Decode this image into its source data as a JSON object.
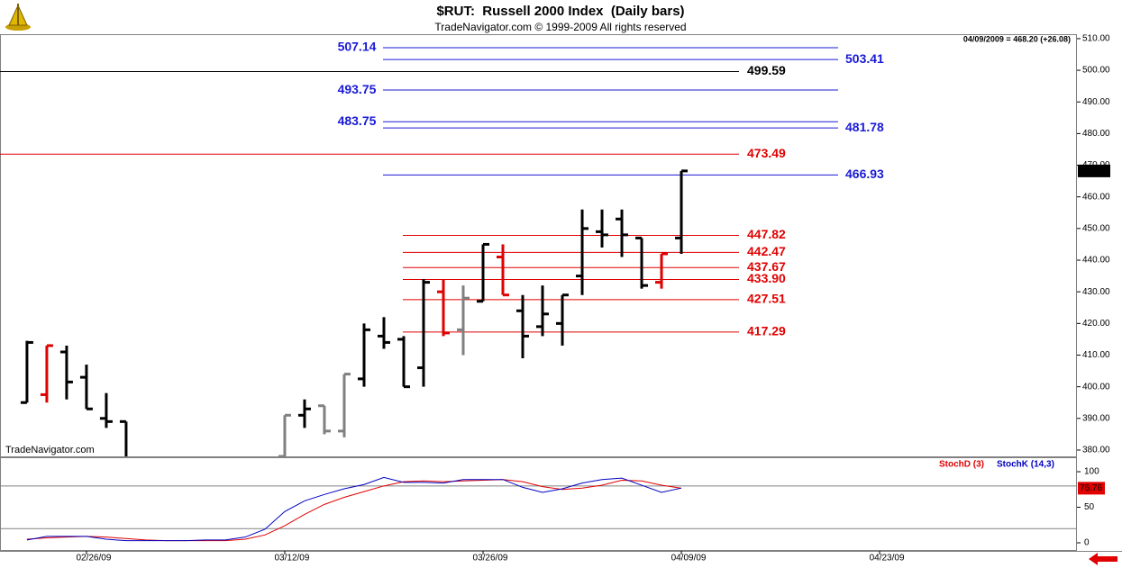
{
  "chart_data": [
    {
      "type": "ohlc",
      "title": "$RUT:  Russell 2000 Index  (Daily bars)",
      "subtitle": "TradeNavigator.com © 1999-2009 All rights reserved",
      "watermark": "TradeNavigator.com",
      "info": "04/09/2009 = 468.20 (+26.08)",
      "last_label": "468.20",
      "x": [
        0,
        1,
        2,
        3,
        4,
        5,
        6,
        7,
        8,
        9,
        10,
        11,
        12,
        13,
        14,
        15,
        16,
        17,
        18,
        19,
        20,
        21,
        22,
        23,
        24,
        25,
        26,
        27,
        28,
        29,
        30,
        31,
        32,
        33
      ],
      "open": [
        395,
        397.5,
        411,
        403,
        390,
        389,
        null,
        null,
        null,
        null,
        null,
        null,
        null,
        378,
        391,
        394,
        386,
        402.5,
        416,
        415,
        406,
        430,
        418,
        427,
        441,
        424,
        419,
        420,
        435,
        449,
        453,
        447,
        433,
        447
      ],
      "high": [
        414.5,
        413,
        413,
        407,
        398,
        389,
        null,
        null,
        null,
        null,
        null,
        null,
        null,
        391,
        396,
        394,
        404,
        420,
        422,
        416,
        434,
        434,
        432,
        445,
        445,
        429,
        432,
        429,
        456,
        456,
        456,
        447,
        442,
        468.2
      ],
      "low": [
        395,
        395,
        396,
        393,
        387,
        377,
        null,
        null,
        null,
        null,
        null,
        null,
        null,
        378,
        387,
        385,
        384,
        400,
        412,
        400,
        400,
        416,
        410,
        427,
        429,
        409,
        416,
        413,
        429,
        444,
        441,
        431,
        431,
        442
      ],
      "close": [
        414,
        413,
        401.5,
        393,
        389,
        377,
        null,
        null,
        null,
        null,
        null,
        null,
        null,
        391,
        393,
        386,
        404,
        418,
        414,
        400,
        433,
        417,
        428,
        445,
        429,
        416,
        423,
        429,
        450,
        448,
        448,
        432,
        442,
        468.2
      ],
      "colors": [
        "#000000",
        "#e00000",
        "#000000",
        "#000000",
        "#000000",
        "#000000",
        "#000000",
        "#000000",
        "#000000",
        "#000000",
        "#000000",
        "#000000",
        "#000000",
        "#808080",
        "#000000",
        "#808080",
        "#808080",
        "#000000",
        "#000000",
        "#000000",
        "#000000",
        "#e00000",
        "#808080",
        "#000000",
        "#e00000",
        "#000000",
        "#000000",
        "#000000",
        "#000000",
        "#000000",
        "#000000",
        "#000000",
        "#e00000",
        "#000000"
      ],
      "levels": [
        {
          "value": 507.14,
          "color": "#1a1ad6"
        },
        {
          "value": 503.41,
          "color": "#1a1ad6"
        },
        {
          "value": 499.59,
          "color": "#000000"
        },
        {
          "value": 493.75,
          "color": "#1a1ad6"
        },
        {
          "value": 483.75,
          "color": "#1a1ad6"
        },
        {
          "value": 481.78,
          "color": "#1a1ad6"
        },
        {
          "value": 473.49,
          "color": "#e00000"
        },
        {
          "value": 466.93,
          "color": "#1a1ad6"
        },
        {
          "value": 447.82,
          "color": "#e00000"
        },
        {
          "value": 442.47,
          "color": "#e00000"
        },
        {
          "value": 437.67,
          "color": "#e00000"
        },
        {
          "value": 433.9,
          "label": "433.90",
          "color": "#e00000"
        },
        {
          "value": 427.51,
          "color": "#e00000"
        },
        {
          "value": 417.29,
          "color": "#e00000"
        }
      ],
      "xlim": [
        -1.36,
        52.95
      ],
      "ylim": [
        378,
        511.4
      ],
      "yticks": [
        {
          "value": 380,
          "label": "380.00"
        },
        {
          "value": 390,
          "label": "390.00"
        },
        {
          "value": 400,
          "label": "400.00"
        },
        {
          "value": 410,
          "label": "410.00"
        },
        {
          "value": 420,
          "label": "420.00"
        },
        {
          "value": 430,
          "label": "430.00"
        },
        {
          "value": 440,
          "label": "440.00"
        },
        {
          "value": 450,
          "label": "450.00"
        },
        {
          "value": 460,
          "label": "460.00"
        },
        {
          "value": 470,
          "label": "470.00"
        },
        {
          "value": 480,
          "label": "480.00"
        },
        {
          "value": 490,
          "label": "490.00"
        },
        {
          "value": 500,
          "label": "500.00"
        },
        {
          "value": 510,
          "label": "510.00"
        }
      ]
    },
    {
      "type": "line",
      "x": [
        0,
        1,
        2,
        3,
        4,
        5,
        6,
        7,
        8,
        9,
        10,
        11,
        12,
        13,
        14,
        15,
        16,
        17,
        18,
        19,
        20,
        21,
        22,
        23,
        24,
        25,
        26,
        27,
        28,
        29,
        30,
        31,
        32,
        33
      ],
      "series": [
        {
          "name": "StochD (3)",
          "color": "#e00000",
          "values": [
            5,
            7,
            8,
            9,
            8,
            6,
            4,
            3,
            3,
            3,
            3,
            5,
            11,
            24,
            40,
            54,
            64,
            72,
            80,
            86,
            87,
            86,
            87,
            88,
            89,
            86,
            79,
            75,
            77,
            81,
            88,
            87,
            81,
            76.76
          ]
        },
        {
          "name": "StochK (14,3)",
          "color": "#0000c0",
          "values": [
            4,
            9,
            9,
            9,
            5,
            3,
            3,
            3,
            3,
            4,
            4,
            8,
            19,
            44,
            59,
            68,
            76,
            82,
            92,
            85,
            85,
            84,
            89,
            89,
            89,
            78,
            71,
            76,
            84,
            89,
            91,
            81,
            71,
            77
          ]
        }
      ],
      "reference_lines": [
        20,
        80
      ],
      "xlim": [
        -1.36,
        52.95
      ],
      "ylim": [
        -11.4,
        120.3
      ],
      "yticks": [
        0,
        50,
        100
      ],
      "xticks": [
        {
          "value": 3,
          "label": "02/26/09"
        },
        {
          "value": 13,
          "label": "03/12/09"
        },
        {
          "value": 23,
          "label": "03/26/09"
        },
        {
          "value": 33,
          "label": "04/09/09"
        },
        {
          "value": 43,
          "label": "04/23/09"
        }
      ]
    }
  ]
}
